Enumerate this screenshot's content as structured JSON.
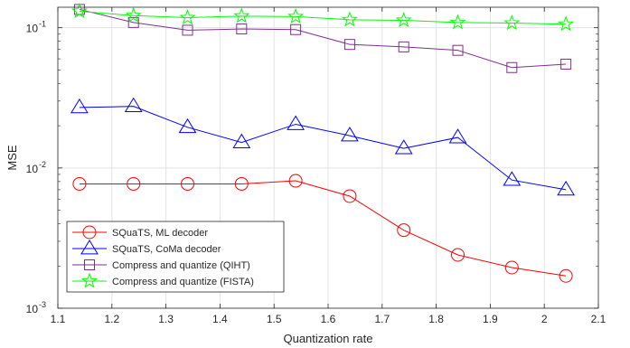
{
  "chart_data": {
    "type": "line",
    "xlabel": "Quantization rate",
    "ylabel": "MSE",
    "yscale": "log",
    "xlim": [
      1.1,
      2.1
    ],
    "ylim": [
      0.001,
      0.14
    ],
    "grid": true,
    "legend_position": "bottom-left",
    "x_ticks": [
      "1.1",
      "1.2",
      "1.3",
      "1.4",
      "1.5",
      "1.6",
      "1.7",
      "1.8",
      "1.9",
      "2",
      "2.1"
    ],
    "y_ticks": [
      {
        "base": "10",
        "exp": "-3",
        "value": 0.001
      },
      {
        "base": "10",
        "exp": "-2",
        "value": 0.01
      },
      {
        "base": "10",
        "exp": "-1",
        "value": 0.1
      }
    ],
    "x": [
      1.14,
      1.24,
      1.34,
      1.44,
      1.54,
      1.64,
      1.74,
      1.84,
      1.94,
      2.04
    ],
    "series": [
      {
        "name": "SQuaTS, ML decoder",
        "color": "#ff0000",
        "marker": "circle",
        "values": [
          0.0077,
          0.0077,
          0.0077,
          0.0077,
          0.0081,
          0.0063,
          0.0036,
          0.0024,
          0.00195,
          0.0017
        ]
      },
      {
        "name": "SQuaTS, CoMa decoder",
        "color": "#0000ff",
        "marker": "triangle",
        "values": [
          0.027,
          0.0275,
          0.0195,
          0.0152,
          0.0205,
          0.017,
          0.0138,
          0.0165,
          0.0082,
          0.007
        ]
      },
      {
        "name": "Compress and quantize (QIHT)",
        "color": "#7e2f8e",
        "marker": "square",
        "values": [
          0.135,
          0.109,
          0.096,
          0.098,
          0.097,
          0.076,
          0.073,
          0.069,
          0.052,
          0.055
        ]
      },
      {
        "name": "Compress and quantize (FISTA)",
        "color": "#00ff00",
        "marker": "star",
        "values": [
          0.131,
          0.122,
          0.118,
          0.121,
          0.12,
          0.114,
          0.113,
          0.109,
          0.108,
          0.106
        ]
      }
    ]
  }
}
